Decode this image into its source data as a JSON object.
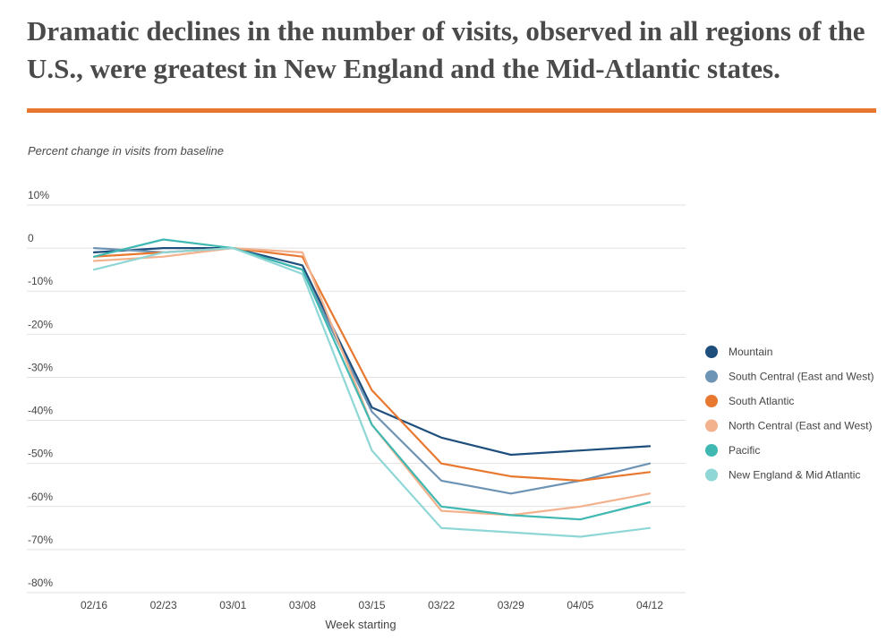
{
  "headline": "Dramatic declines in the number of visits, observed in all regions of the U.S., were greatest in New England and the Mid-Atlantic states.",
  "accent_color": "#e8782f",
  "chart_data": {
    "type": "line",
    "ylabel": "Percent change in visits from baseline",
    "xlabel": "Week starting",
    "categories": [
      "02/16",
      "02/23",
      "03/01",
      "03/08",
      "03/15",
      "03/22",
      "03/29",
      "04/05",
      "04/12"
    ],
    "ylim": [
      -80,
      10
    ],
    "yticks": [
      10,
      0,
      -10,
      -20,
      -30,
      -40,
      -50,
      -60,
      -70,
      -80
    ],
    "ytick_labels": [
      "10%",
      "0",
      "-10%",
      "-20%",
      "-30%",
      "-40%",
      "-50%",
      "-60%",
      "-70%",
      "-80%"
    ],
    "grid": true,
    "legend_position": "right",
    "series": [
      {
        "name": "Mountain",
        "color": "#1d4e7c",
        "values": [
          -1,
          0,
          0,
          -4,
          -37,
          -44,
          -48,
          -47,
          -46
        ]
      },
      {
        "name": "South Central (East and West)",
        "color": "#6d93b5",
        "values": [
          0,
          -1,
          0,
          -5,
          -38,
          -54,
          -57,
          -54,
          -50
        ]
      },
      {
        "name": "South Atlantic",
        "color": "#e8782f",
        "values": [
          -2,
          -1,
          0,
          -2,
          -33,
          -50,
          -53,
          -54,
          -52
        ]
      },
      {
        "name": "North Central (East and West)",
        "color": "#f2b28d",
        "values": [
          -3,
          -2,
          0,
          -1,
          -41,
          -61,
          -62,
          -60,
          -57
        ]
      },
      {
        "name": "Pacific",
        "color": "#3fb8b2",
        "values": [
          -2,
          2,
          0,
          -5,
          -41,
          -60,
          -62,
          -63,
          -59
        ]
      },
      {
        "name": "New England & Mid Atlantic",
        "color": "#8fd6d6",
        "values": [
          -5,
          -1,
          0,
          -6,
          -47,
          -65,
          -66,
          -67,
          -65
        ]
      }
    ]
  }
}
